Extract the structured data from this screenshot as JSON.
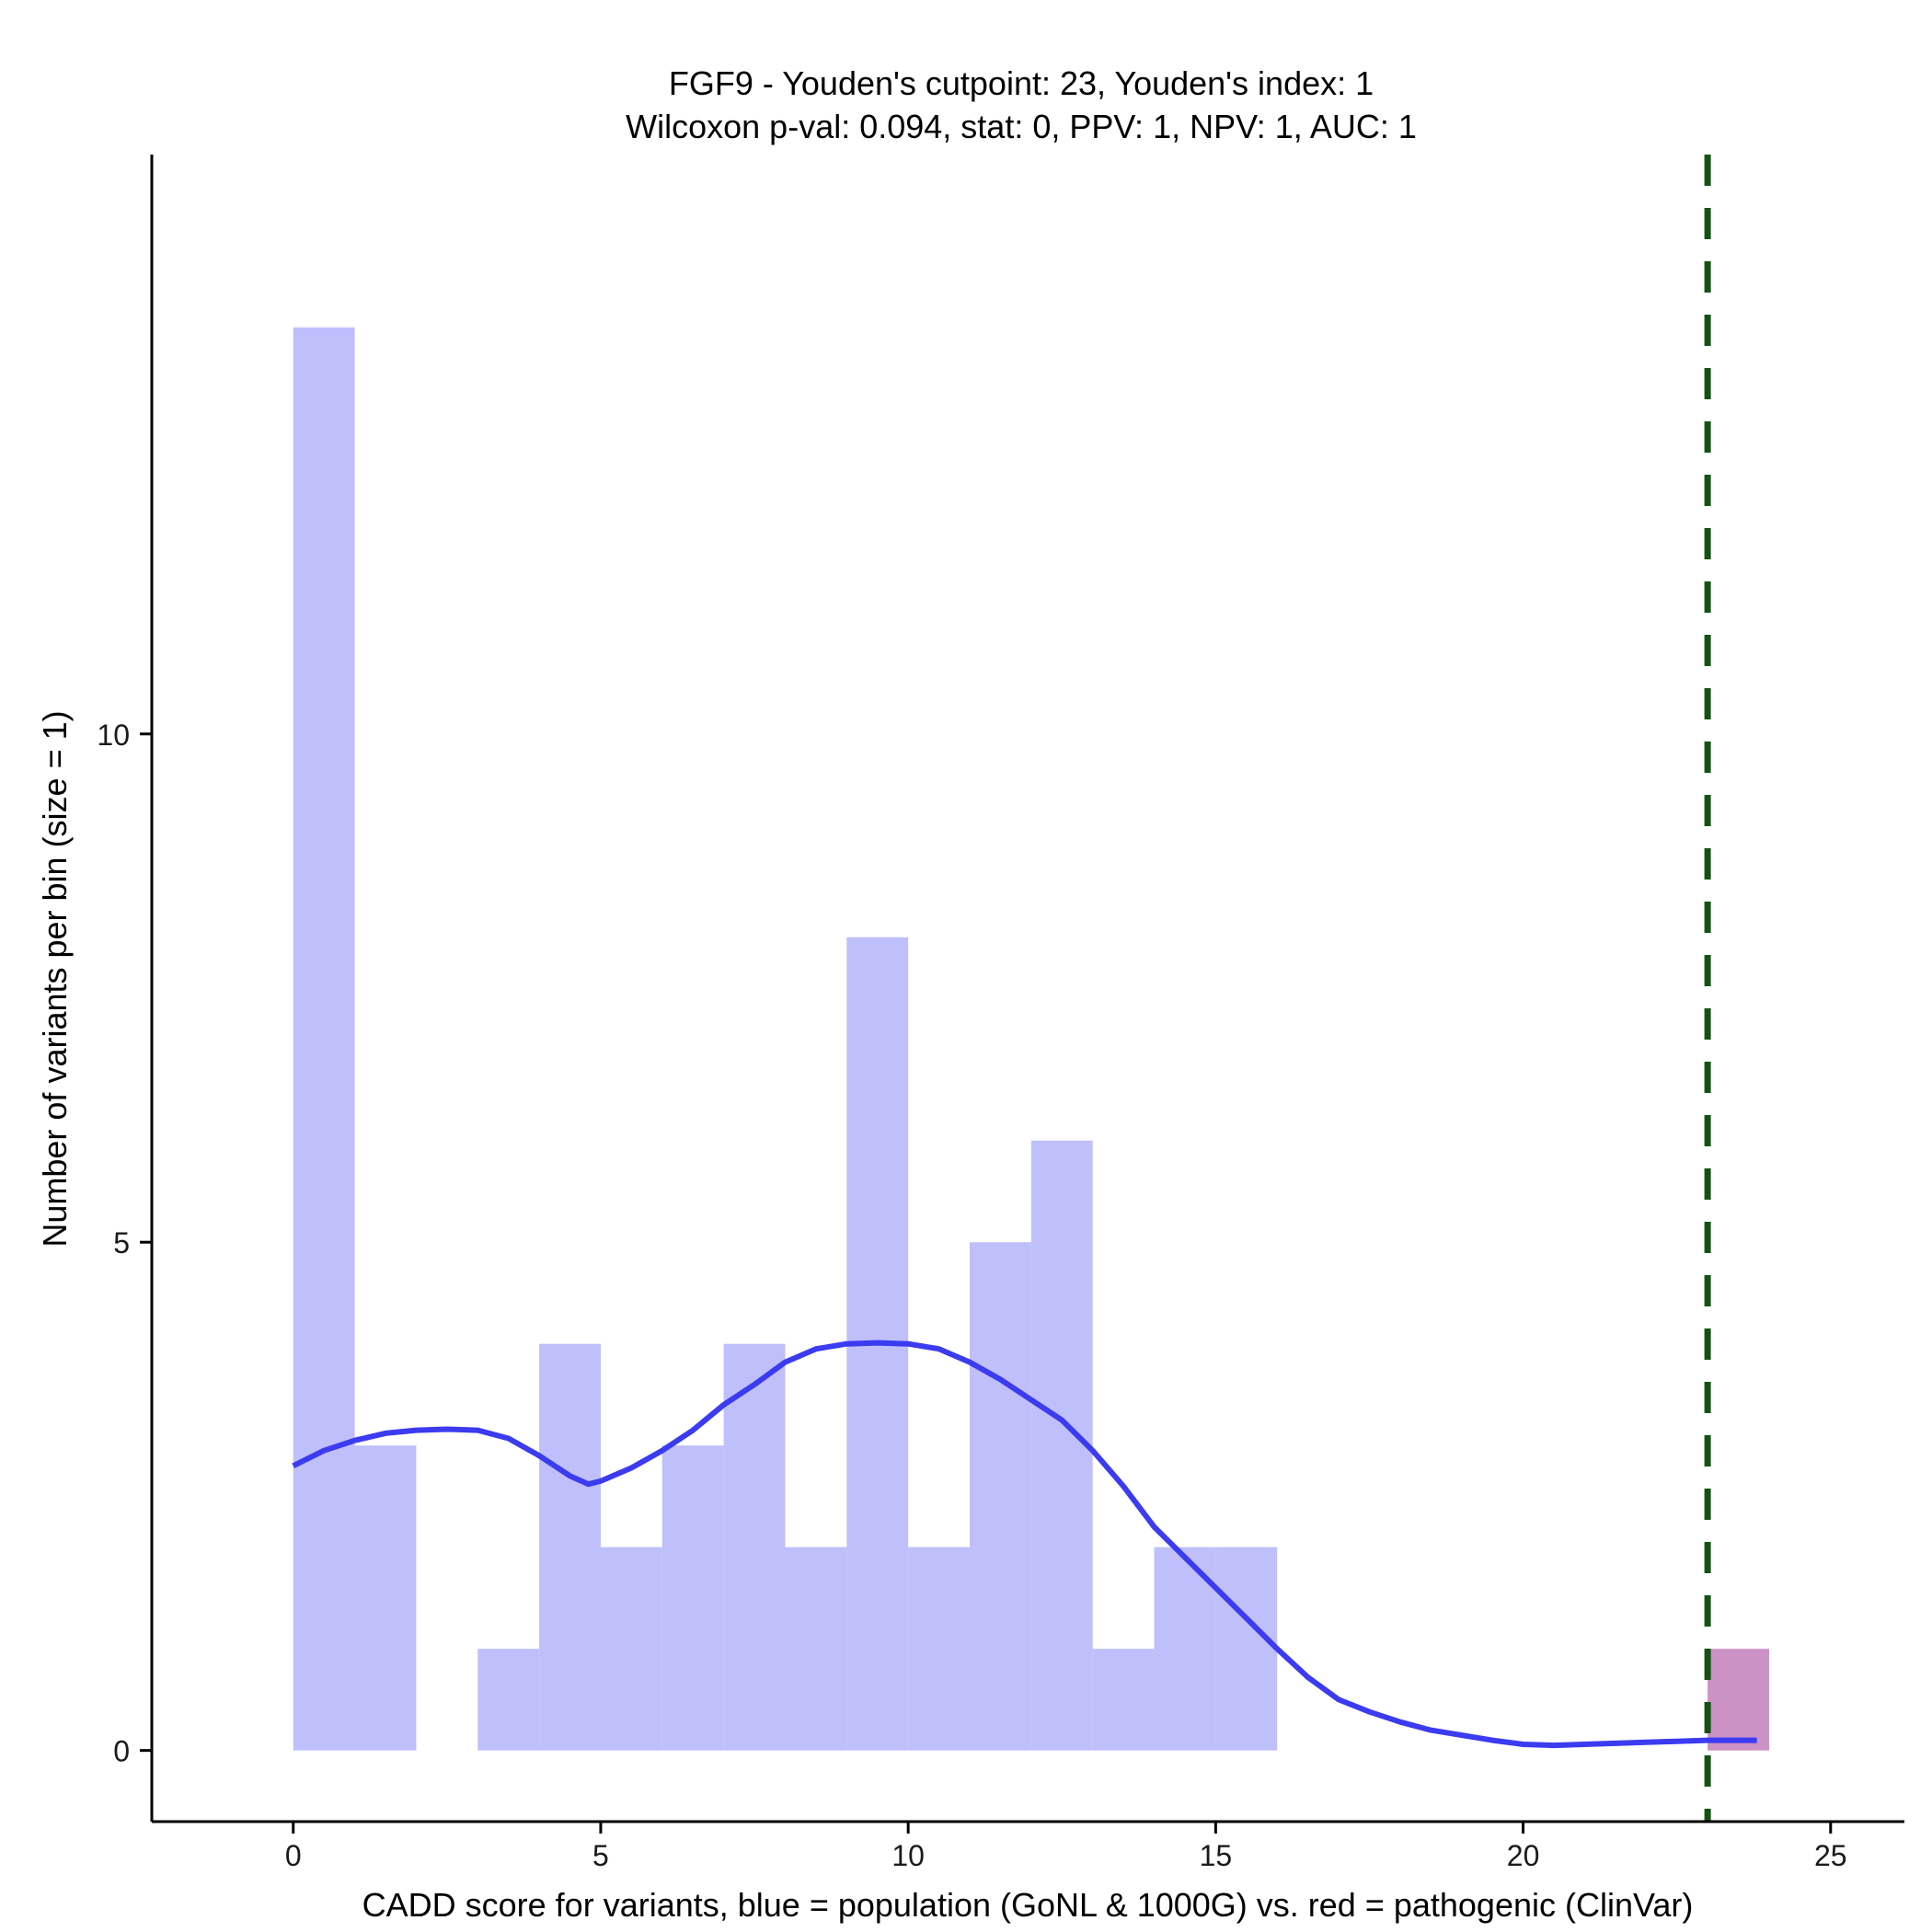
{
  "chart_data": {
    "type": "bar",
    "title_line1": "FGF9 - Youden's cutpoint: 23, Youden's index: 1",
    "title_line2": "Wilcoxon p-val: 0.094, stat: 0, PPV: 1, NPV: 1, AUC: 1",
    "xlabel": "CADD score for variants, blue = population (GoNL & 1000G) vs. red = pathogenic (ClinVar)",
    "ylabel": "Number of variants per bin (size = 1)",
    "xlim": [
      -2.3,
      26.2
    ],
    "ylim": [
      -0.7,
      15.7
    ],
    "x_ticks": [
      0,
      5,
      10,
      15,
      20,
      25
    ],
    "y_ticks": [
      0,
      5,
      10
    ],
    "bin_width": 1,
    "cutpoint": 23,
    "colors": {
      "population": "#bfbffb",
      "pathogenic": "#cc91c6",
      "density": "#3b3bf0",
      "cutpoint": "#145214"
    },
    "series": [
      {
        "name": "population",
        "bin_starts": [
          0,
          1,
          2,
          3,
          4,
          5,
          6,
          7,
          8,
          9,
          10,
          11,
          12,
          13,
          14,
          15
        ],
        "values": [
          14,
          3,
          0,
          1,
          4,
          2,
          3,
          4,
          2,
          8,
          2,
          5,
          6,
          1,
          2,
          2
        ]
      },
      {
        "name": "pathogenic",
        "bin_starts": [
          23
        ],
        "values": [
          1
        ]
      }
    ],
    "density_curve": {
      "x": [
        0,
        0.5,
        1,
        1.5,
        2,
        2.5,
        3,
        3.5,
        4,
        4.5,
        4.8,
        5,
        5.5,
        6,
        6.5,
        7,
        7.5,
        8,
        8.5,
        9,
        9.5,
        10,
        10.5,
        11,
        11.5,
        12,
        12.5,
        13,
        13.5,
        14,
        14.5,
        15,
        15.5,
        16,
        16.5,
        17,
        17.5,
        18,
        18.5,
        19,
        19.5,
        20,
        20.5,
        21,
        21.5,
        22,
        22.5,
        23,
        23.5,
        23.8
      ],
      "y": [
        2.8,
        2.95,
        3.05,
        3.12,
        3.15,
        3.16,
        3.15,
        3.07,
        2.9,
        2.7,
        2.62,
        2.65,
        2.78,
        2.95,
        3.15,
        3.4,
        3.6,
        3.82,
        3.95,
        4,
        4.01,
        4,
        3.95,
        3.82,
        3.65,
        3.45,
        3.25,
        2.95,
        2.6,
        2.2,
        1.9,
        1.6,
        1.3,
        1,
        0.72,
        0.5,
        0.38,
        0.28,
        0.2,
        0.15,
        0.1,
        0.06,
        0.05,
        0.06,
        0.07,
        0.08,
        0.09,
        0.1,
        0.1,
        0.1
      ]
    }
  }
}
